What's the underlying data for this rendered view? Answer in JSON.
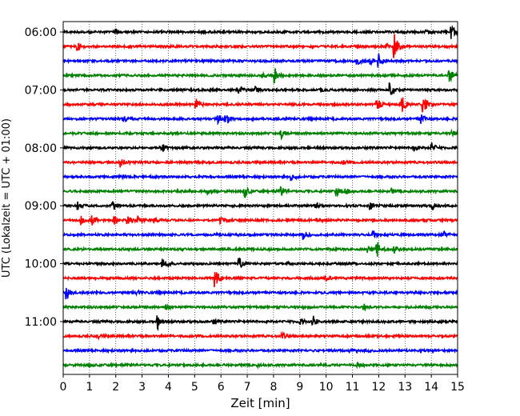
{
  "chart_data": {
    "type": "line",
    "title": "",
    "xlabel": "Zeit  [min]",
    "ylabel": "UTC (Lokalzeit = UTC + 01:00)",
    "xlim": [
      0,
      15
    ],
    "xticks": [
      0,
      1,
      2,
      3,
      4,
      5,
      6,
      7,
      8,
      9,
      10,
      11,
      12,
      13,
      14,
      15
    ],
    "x_gridlines": "dotted",
    "y_tick_labels": [
      "06:00",
      "07:00",
      "08:00",
      "09:00",
      "10:00",
      "11:00"
    ],
    "trace_interval_min": 15,
    "color_cycle": [
      "#000000",
      "#ff0000",
      "#0000ff",
      "#008000"
    ],
    "series": [
      {
        "start": "06:00",
        "events": [
          [
            14.75,
            1.0
          ],
          [
            2.0,
            0.3
          ],
          [
            13.8,
            0.35
          ]
        ]
      },
      {
        "start": "06:15",
        "events": [
          [
            12.6,
            1.6
          ],
          [
            0.55,
            0.5
          ],
          [
            12.3,
            0.3
          ]
        ]
      },
      {
        "start": "06:30",
        "events": [
          [
            11.2,
            0.5
          ],
          [
            12.0,
            0.9
          ],
          [
            11.7,
            0.4
          ]
        ]
      },
      {
        "start": "06:45",
        "events": [
          [
            8.05,
            1.0
          ],
          [
            14.7,
            0.9
          ],
          [
            7.6,
            0.3
          ]
        ]
      },
      {
        "start": "07:00",
        "events": [
          [
            6.7,
            0.6
          ],
          [
            12.4,
            1.1
          ],
          [
            7.3,
            0.4
          ],
          [
            9.8,
            0.3
          ]
        ]
      },
      {
        "start": "07:15",
        "events": [
          [
            5.05,
            0.8
          ],
          [
            11.95,
            0.8
          ],
          [
            12.9,
            1.1
          ],
          [
            13.7,
            1.4
          ]
        ]
      },
      {
        "start": "07:30",
        "events": [
          [
            6.2,
            0.9
          ],
          [
            5.9,
            0.6
          ],
          [
            13.6,
            0.7
          ],
          [
            2.3,
            0.3
          ]
        ]
      },
      {
        "start": "07:45",
        "events": [
          [
            8.3,
            0.6
          ],
          [
            14.8,
            0.4
          ]
        ]
      },
      {
        "start": "08:00",
        "events": [
          [
            3.7,
            1.0
          ],
          [
            14.0,
            0.8
          ],
          [
            13.3,
            0.5
          ]
        ]
      },
      {
        "start": "08:15",
        "events": [
          [
            2.2,
            0.6
          ],
          [
            10.7,
            0.2
          ]
        ]
      },
      {
        "start": "08:30",
        "events": [
          [
            8.7,
            0.4
          ],
          [
            2.1,
            0.2
          ]
        ]
      },
      {
        "start": "08:45",
        "events": [
          [
            6.9,
            0.8
          ],
          [
            8.3,
            0.6
          ],
          [
            10.4,
            0.6
          ],
          [
            10.75,
            0.5
          ],
          [
            5.5,
            0.4
          ],
          [
            12.5,
            0.4
          ]
        ]
      },
      {
        "start": "09:00",
        "events": [
          [
            0.55,
            0.5
          ],
          [
            1.9,
            0.5
          ],
          [
            9.6,
            0.4
          ],
          [
            11.7,
            0.5
          ],
          [
            14.05,
            0.5
          ]
        ]
      },
      {
        "start": "09:15",
        "events": [
          [
            0.7,
            0.6
          ],
          [
            1.1,
            0.6
          ],
          [
            1.95,
            0.6
          ],
          [
            2.45,
            0.9
          ],
          [
            2.85,
            0.5
          ],
          [
            3.5,
            0.4
          ],
          [
            6.0,
            0.4
          ]
        ]
      },
      {
        "start": "09:30",
        "events": [
          [
            9.15,
            0.6
          ],
          [
            11.8,
            0.5
          ],
          [
            14.5,
            0.3
          ]
        ]
      },
      {
        "start": "09:45",
        "events": [
          [
            11.95,
            1.0
          ],
          [
            11.6,
            0.4
          ],
          [
            12.6,
            0.5
          ]
        ]
      },
      {
        "start": "10:00",
        "events": [
          [
            3.8,
            0.9
          ],
          [
            6.7,
            0.7
          ],
          [
            8.5,
            0.3
          ]
        ]
      },
      {
        "start": "10:15",
        "events": [
          [
            5.8,
            1.2
          ],
          [
            10.0,
            0.3
          ]
        ]
      },
      {
        "start": "10:30",
        "events": [
          [
            0.15,
            0.9
          ],
          [
            2.8,
            0.3
          ]
        ]
      },
      {
        "start": "10:45",
        "events": [
          [
            3.9,
            0.4
          ],
          [
            11.45,
            0.4
          ]
        ]
      },
      {
        "start": "11:00",
        "events": [
          [
            3.6,
            0.9
          ],
          [
            9.5,
            0.8
          ],
          [
            9.0,
            0.4
          ],
          [
            5.7,
            0.3
          ]
        ]
      },
      {
        "start": "11:15",
        "events": [
          [
            8.3,
            0.5
          ],
          [
            1.3,
            0.3
          ]
        ]
      },
      {
        "start": "11:30",
        "events": [
          [
            10.9,
            0.2
          ],
          [
            11.5,
            0.2
          ]
        ]
      },
      {
        "start": "11:45",
        "events": [
          [
            1.0,
            0.2
          ],
          [
            11.2,
            0.2
          ],
          [
            7.4,
            0.2
          ]
        ]
      }
    ]
  }
}
